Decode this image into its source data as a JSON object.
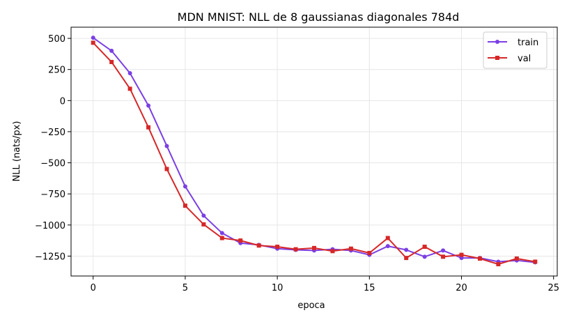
{
  "chart_data": {
    "type": "line",
    "title": "MDN MNIST: NLL de 8 gaussianas diagonales 784d",
    "xlabel": "epoca",
    "ylabel": "NLL (nats/px)",
    "xlim": [
      -1.2,
      25.2
    ],
    "ylim": [
      -1410,
      590
    ],
    "xticks": [
      0,
      5,
      10,
      15,
      20,
      25
    ],
    "yticks": [
      500,
      250,
      0,
      -250,
      -500,
      -750,
      -1000,
      -1250
    ],
    "ytick_labels": [
      "500",
      "250",
      "0",
      "−250",
      "−500",
      "−750",
      "−1000",
      "−1250"
    ],
    "grid": true,
    "legend_position": "top-right",
    "x": [
      0,
      1,
      2,
      3,
      4,
      5,
      6,
      7,
      8,
      9,
      10,
      11,
      12,
      13,
      14,
      15,
      16,
      17,
      18,
      19,
      20,
      21,
      22,
      23,
      24
    ],
    "series": [
      {
        "name": "train",
        "color": "#7b3fe4",
        "marker": "circle",
        "values": [
          505,
          400,
          220,
          -40,
          -365,
          -690,
          -925,
          -1065,
          -1145,
          -1160,
          -1190,
          -1200,
          -1205,
          -1195,
          -1205,
          -1240,
          -1170,
          -1200,
          -1255,
          -1205,
          -1265,
          -1265,
          -1295,
          -1285,
          -1300
        ]
      },
      {
        "name": "val",
        "color": "#d62728",
        "marker": "square",
        "values": [
          465,
          310,
          95,
          -215,
          -550,
          -845,
          -995,
          -1105,
          -1125,
          -1165,
          -1175,
          -1195,
          -1185,
          -1210,
          -1190,
          -1225,
          -1105,
          -1265,
          -1175,
          -1255,
          -1240,
          -1270,
          -1315,
          -1270,
          -1295
        ]
      }
    ]
  }
}
